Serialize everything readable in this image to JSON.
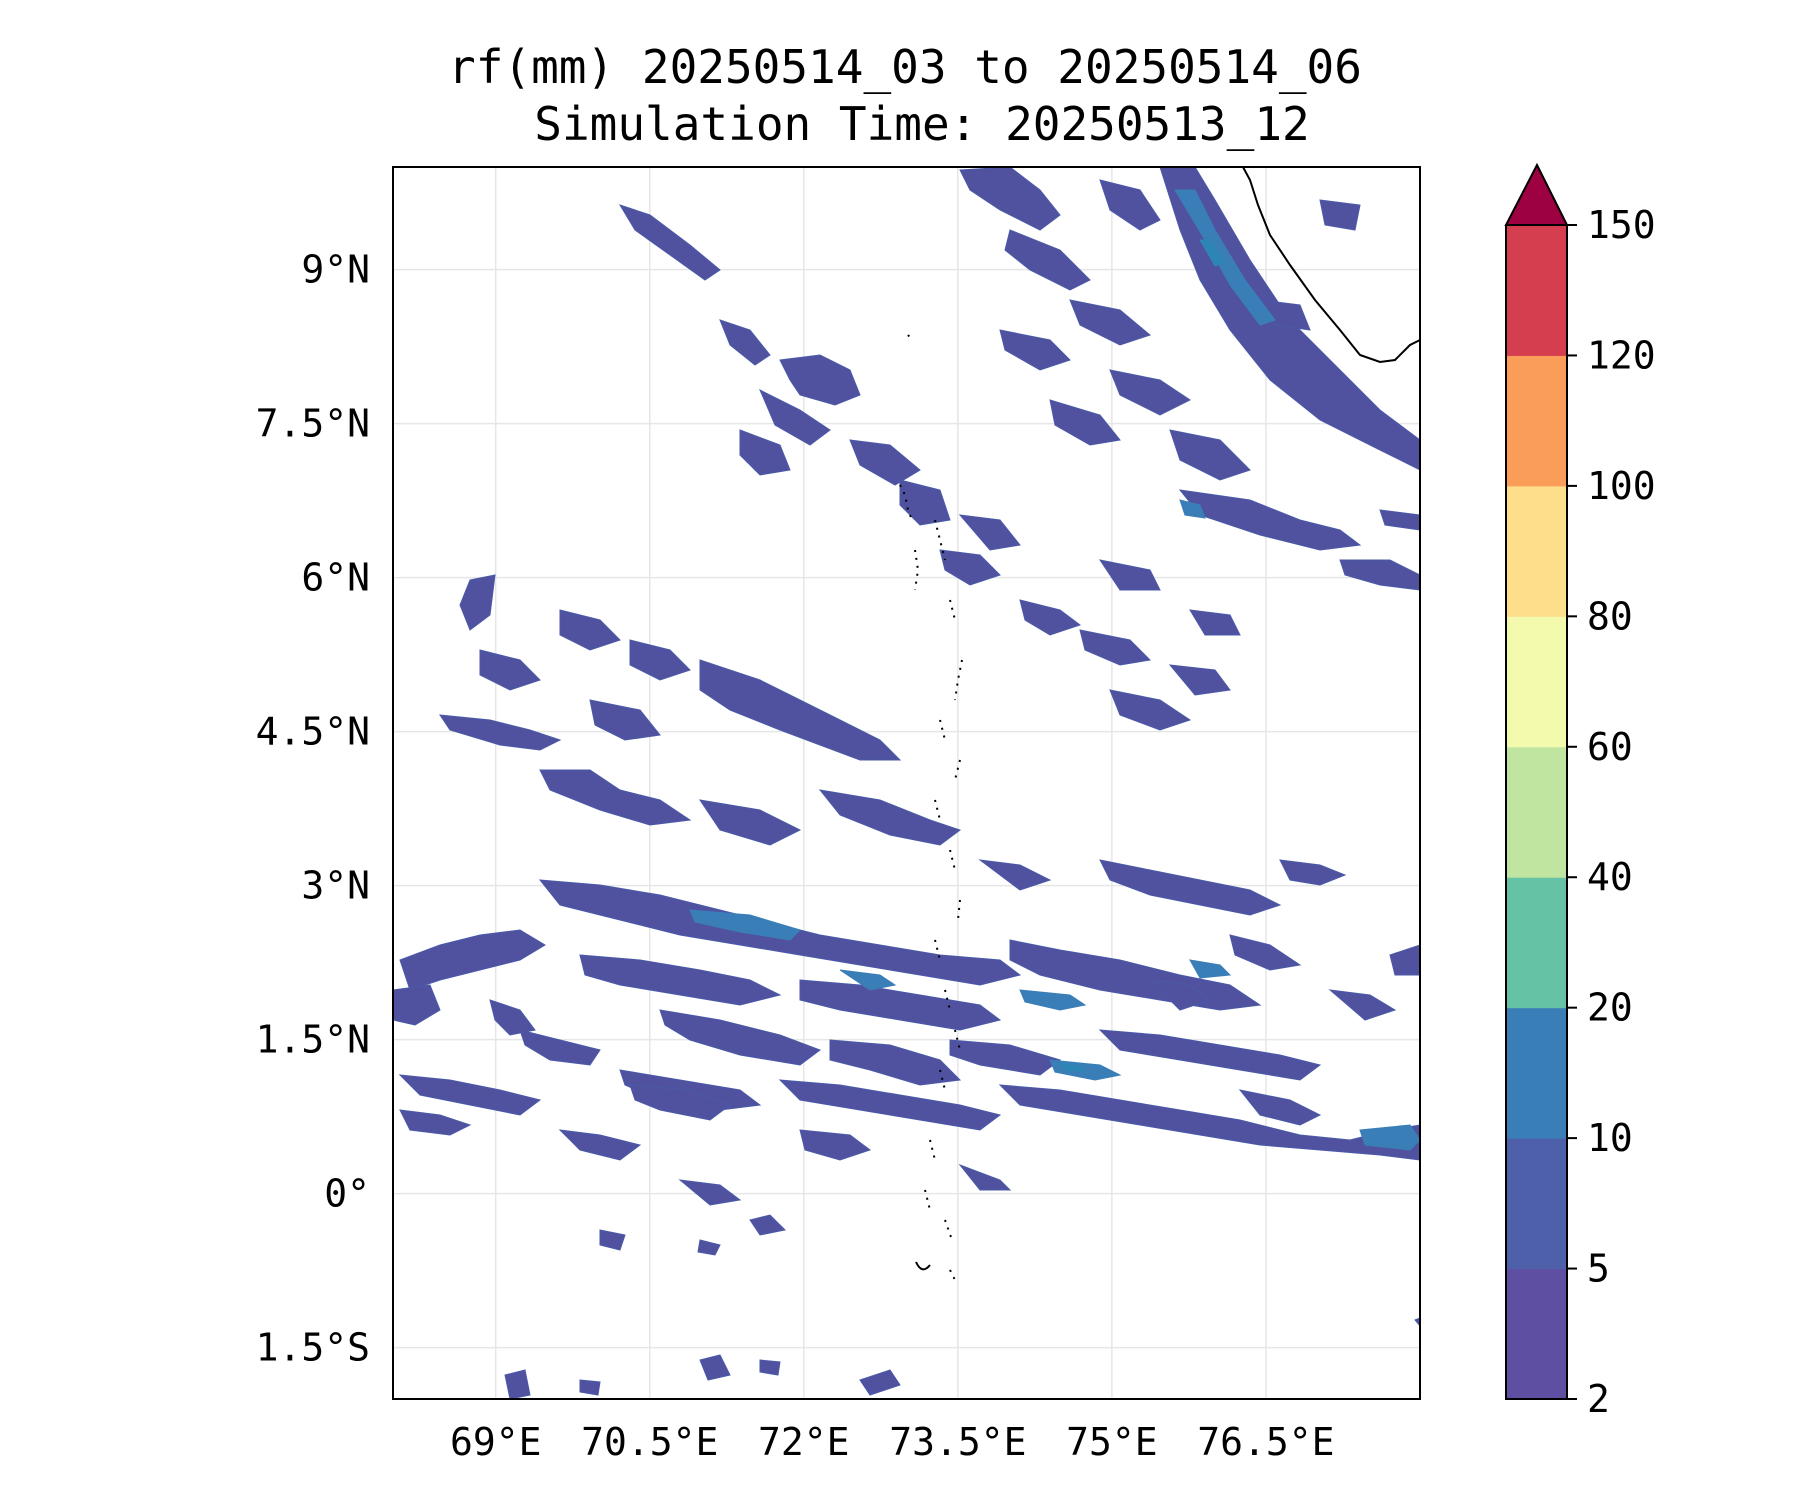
{
  "title": {
    "line1": "rf(mm) 20250514_03 to 20250514_06",
    "line2": "Simulation Time: 20250513_12"
  },
  "map": {
    "lon_range": [
      68.0,
      78.0
    ],
    "lat_range": [
      -2.0,
      10.0
    ],
    "lon_ticks": [
      {
        "value": 69.0,
        "label": "69°E"
      },
      {
        "value": 70.5,
        "label": "70.5°E"
      },
      {
        "value": 72.0,
        "label": "72°E"
      },
      {
        "value": 73.5,
        "label": "73.5°E"
      },
      {
        "value": 75.0,
        "label": "75°E"
      },
      {
        "value": 76.5,
        "label": "76.5°E"
      }
    ],
    "lat_ticks": [
      {
        "value": 9.0,
        "label": "9°N"
      },
      {
        "value": 7.5,
        "label": "7.5°N"
      },
      {
        "value": 6.0,
        "label": "6°N"
      },
      {
        "value": 4.5,
        "label": "4.5°N"
      },
      {
        "value": 3.0,
        "label": "3°N"
      },
      {
        "value": 1.5,
        "label": "1.5°N"
      },
      {
        "value": 0.0,
        "label": "0°"
      },
      {
        "value": -1.5,
        "label": "1.5°S"
      }
    ],
    "gridlines": true
  },
  "colorbar": {
    "levels": [
      2,
      5,
      10,
      20,
      40,
      60,
      80,
      100,
      120,
      150
    ],
    "labels": [
      "2",
      "5",
      "10",
      "20",
      "40",
      "60",
      "80",
      "100",
      "120",
      "150"
    ],
    "colors": [
      "#5e4fa2",
      "#4f60ab",
      "#3a7eb8",
      "#66c2a5",
      "#bfe5a0",
      "#f3faad",
      "#fddf8b",
      "#f99d59",
      "#d53e4f"
    ],
    "extend_color": "#9e0142",
    "extend": "max"
  }
}
